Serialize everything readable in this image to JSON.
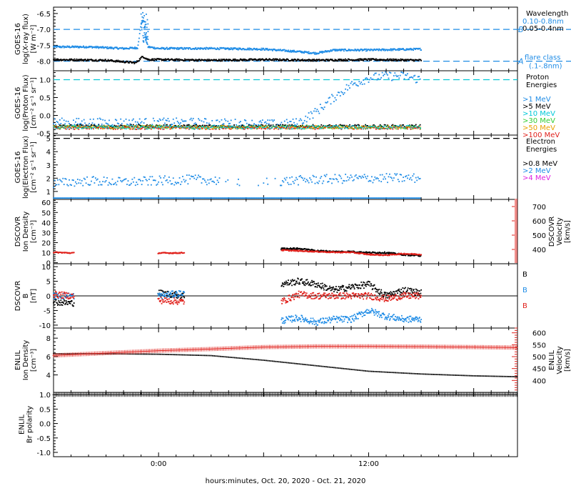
{
  "chart_data": {
    "type": "line",
    "time_axis": {
      "label": "hours:minutes, Oct. 20, 2020 - Oct. 21, 2020",
      "range_hours": [
        -6,
        20.5
      ],
      "ticks": [
        {
          "hour": 0,
          "label": "0:00"
        },
        {
          "hour": 12,
          "label": "12:00"
        }
      ]
    },
    "panels": [
      {
        "id": "xray",
        "ylabel": [
          "GOES-16",
          "log(X-ray flux)",
          "[W m⁻²]"
        ],
        "ylim": [
          -8.3,
          -6.3
        ],
        "yticks": [
          -8.0,
          -7.5,
          -7.0,
          -6.5
        ],
        "ytick_labels": [
          "-8.0",
          "-7.5",
          "-7.0",
          "-6.5"
        ],
        "legend_title": [
          "Wavelength"
        ],
        "legend": [
          {
            "label": "0.10-0.8nm",
            "color": "#1f8ce6"
          },
          {
            "label": "0.05-0.4nm",
            "color": "#000000"
          }
        ],
        "reference_lines": [
          {
            "y": -7.0,
            "label": "B",
            "color": "#1f8ce6"
          },
          {
            "y": -8.0,
            "label": "A",
            "color": "#1f8ce6"
          }
        ],
        "annotation": [
          "flare class",
          "(.1-.8nm)"
        ],
        "series": [
          {
            "name": "0.10-0.8nm",
            "color": "#1f8ce6",
            "points": [
              [
                -6,
                -7.55
              ],
              [
                -4,
                -7.55
              ],
              [
                -2,
                -7.6
              ],
              [
                -1.2,
                -7.58
              ],
              [
                -0.9,
                -6.5
              ],
              [
                -0.8,
                -7.2
              ],
              [
                -0.6,
                -7.55
              ],
              [
                0,
                -7.6
              ],
              [
                3,
                -7.6
              ],
              [
                6,
                -7.62
              ],
              [
                8,
                -7.7
              ],
              [
                9,
                -7.75
              ],
              [
                10,
                -7.65
              ],
              [
                12,
                -7.65
              ],
              [
                15,
                -7.62
              ]
            ]
          },
          {
            "name": "0.05-0.4nm",
            "color": "#000000",
            "points": [
              [
                -6,
                -7.95
              ],
              [
                -3,
                -7.97
              ],
              [
                -1.3,
                -8.05
              ],
              [
                -0.9,
                -7.85
              ],
              [
                -0.6,
                -7.95
              ],
              [
                0,
                -7.95
              ],
              [
                3,
                -7.97
              ],
              [
                6,
                -7.95
              ],
              [
                9,
                -7.97
              ],
              [
                12,
                -7.95
              ],
              [
                15,
                -7.97
              ]
            ]
          }
        ]
      },
      {
        "id": "proton",
        "ylabel": [
          "GOES-16",
          "log(Proton Flux)",
          "[cm⁻² s⁻¹ sr⁻¹]"
        ],
        "ylim": [
          -0.55,
          1.25
        ],
        "yticks": [
          -0.5,
          0.0,
          0.5,
          1.0
        ],
        "ytick_labels": [
          "-0.5",
          "0.0",
          "0.5",
          "1.0"
        ],
        "legend_title": [
          "Proton",
          "Energies"
        ],
        "legend": [
          {
            "label": ">1 MeV",
            "color": "#1f8ce6"
          },
          {
            "label": ">5 MeV",
            "color": "#000000"
          },
          {
            "label": ">10 MeV",
            "color": "#00c8d8"
          },
          {
            "label": ">30 MeV",
            "color": "#33cc33"
          },
          {
            "label": ">50 MeV",
            "color": "#e8a000"
          },
          {
            "label": ">100 MeV",
            "color": "#e0201b"
          }
        ],
        "reference_lines": [
          {
            "y": 1.0,
            "color": "#00c8d8"
          }
        ],
        "series": [
          {
            "name": ">1 MeV",
            "color": "#1f8ce6",
            "points": [
              [
                -6,
                -0.2
              ],
              [
                2,
                -0.2
              ],
              [
                7,
                -0.25
              ],
              [
                8,
                -0.2
              ],
              [
                9,
                0.1
              ],
              [
                10,
                0.5
              ],
              [
                11,
                0.85
              ],
              [
                12,
                1.05
              ],
              [
                13,
                1.1
              ],
              [
                14,
                1.1
              ],
              [
                15,
                1.0
              ]
            ]
          },
          {
            "name": ">5 MeV",
            "color": "#000000",
            "points": [
              [
                -6,
                -0.3
              ],
              [
                15,
                -0.3
              ]
            ]
          },
          {
            "name": ">100 MeV",
            "color": "#e0201b",
            "points": [
              [
                -6,
                -0.35
              ],
              [
                15,
                -0.35
              ]
            ]
          }
        ]
      },
      {
        "id": "electron",
        "ylabel": [
          "GOES-16",
          "log(Electron Flux)",
          "[cm⁻² s⁻¹ sr⁻¹]"
        ],
        "ylim": [
          0.4,
          5.25
        ],
        "yticks": [
          1,
          2,
          3,
          4,
          5
        ],
        "ytick_labels": [
          "1",
          "2",
          "3",
          "4",
          "5"
        ],
        "legend_title": [
          "Electron",
          "Energies"
        ],
        "legend": [
          {
            "label": ">0.8 MeV",
            "color": "#000000"
          },
          {
            "label": ">2 MeV",
            "color": "#1f8ce6"
          },
          {
            "label": ">4 MeV",
            "color": "#e020e0"
          }
        ],
        "reference_lines": [
          {
            "y": 5.0,
            "color": "#000000"
          }
        ],
        "series": [
          {
            "name": ">2 MeV",
            "color": "#1f8ce6",
            "points": [
              [
                -6,
                1.6
              ],
              [
                -4,
                1.8
              ],
              [
                -2,
                1.7
              ],
              [
                0,
                1.8
              ],
              [
                2,
                1.9
              ],
              [
                4,
                1.8
              ],
              [
                6,
                1.7
              ],
              [
                9,
                1.9
              ],
              [
                12,
                2.0
              ],
              [
                15,
                2.0
              ]
            ]
          },
          {
            "name": ">0.8 MeV",
            "color": "#1f8ce6",
            "points": [
              [
                -6,
                0.5
              ],
              [
                15,
                0.5
              ]
            ]
          }
        ]
      },
      {
        "id": "density",
        "ylabel": [
          "DSCOVR",
          "Ion Density",
          "[cm⁻³]"
        ],
        "ylim": [
          -1,
          63
        ],
        "yticks": [
          0,
          10,
          20,
          30,
          40,
          50,
          60
        ],
        "ytick_labels": [
          "0",
          "10",
          "20",
          "30",
          "40",
          "50",
          "60"
        ],
        "right_ylabel": [
          "DSCOVR",
          "Velocity",
          "[km/s]"
        ],
        "right_ylim": [
          300,
          750
        ],
        "right_yticks": [
          400,
          500,
          600,
          700
        ],
        "right_ytick_labels": [
          "400",
          "500",
          "600",
          "700"
        ],
        "series": [
          {
            "name": "density",
            "color": "#000000",
            "axis": "left",
            "points": [
              [
                7,
                14
              ],
              [
                8,
                14
              ],
              [
                9,
                12
              ],
              [
                10,
                11
              ],
              [
                11,
                11
              ],
              [
                12,
                10
              ],
              [
                13,
                10
              ],
              [
                14,
                8
              ],
              [
                15,
                7
              ]
            ]
          },
          {
            "name": "velocity",
            "color": "#e0201b",
            "axis": "right",
            "points": [
              [
                -6,
                380
              ],
              [
                -5,
                375
              ],
              [
                0,
                375
              ],
              [
                1,
                375
              ],
              [
                7,
                395
              ],
              [
                8,
                390
              ],
              [
                9,
                385
              ],
              [
                10,
                380
              ],
              [
                11,
                380
              ],
              [
                12,
                365
              ],
              [
                13,
                360
              ],
              [
                14,
                370
              ],
              [
                15,
                365
              ]
            ]
          }
        ]
      },
      {
        "id": "bfield",
        "ylabel": [
          "DSCOVR",
          "B",
          "[nT]"
        ],
        "ylim": [
          -11,
          11
        ],
        "yticks": [
          -10,
          -5,
          0,
          5,
          10
        ],
        "ytick_labels": [
          "-10",
          "-5",
          "0",
          "5",
          "10"
        ],
        "zero_line": true,
        "legend": [
          {
            "label": "Bx",
            "color": "#000000"
          },
          {
            "label": "By",
            "color": "#1f8ce6"
          },
          {
            "label": "Bz",
            "color": "#e0201b"
          }
        ],
        "series": [
          {
            "name": "Bx",
            "color": "#000000",
            "points": [
              [
                -6,
                -2
              ],
              [
                -5,
                -2.5
              ],
              [
                0,
                1
              ],
              [
                1.5,
                0
              ],
              [
                7,
                4
              ],
              [
                8,
                5
              ],
              [
                9,
                4
              ],
              [
                10,
                2
              ],
              [
                11,
                3
              ],
              [
                12,
                4
              ],
              [
                13,
                0
              ],
              [
                14,
                2
              ],
              [
                15,
                1
              ]
            ]
          },
          {
            "name": "By",
            "color": "#1f8ce6",
            "points": [
              [
                -6,
                0
              ],
              [
                -5,
                0
              ],
              [
                0,
                0
              ],
              [
                1.5,
                1
              ],
              [
                7,
                -8.5
              ],
              [
                8,
                -7.5
              ],
              [
                9,
                -9
              ],
              [
                10,
                -8
              ],
              [
                11,
                -8
              ],
              [
                12,
                -5
              ],
              [
                13,
                -7
              ],
              [
                14,
                -8
              ],
              [
                15,
                -8
              ]
            ]
          },
          {
            "name": "Bz",
            "color": "#e0201b",
            "points": [
              [
                -6,
                0.5
              ],
              [
                -5,
                0
              ],
              [
                0,
                -1.5
              ],
              [
                1.5,
                -2
              ],
              [
                7,
                -2
              ],
              [
                8,
                0.5
              ],
              [
                9,
                0
              ],
              [
                10,
                0
              ],
              [
                11,
                0
              ],
              [
                12,
                0
              ],
              [
                13,
                -1
              ],
              [
                14,
                0
              ],
              [
                15,
                0
              ]
            ]
          }
        ]
      },
      {
        "id": "enlil_density",
        "ylabel": [
          "ENLIL",
          "Ion Density",
          "[cm⁻³]"
        ],
        "ylim": [
          2.1,
          9.1
        ],
        "yticks": [
          4,
          6,
          8
        ],
        "ytick_labels": [
          "4",
          "6",
          "8"
        ],
        "right_ylabel": [
          "ENLIL",
          "Velocity",
          "[km/s]"
        ],
        "right_ylim": [
          350,
          620
        ],
        "right_yticks": [
          400,
          450,
          500,
          550,
          600
        ],
        "right_ytick_labels": [
          "400",
          "450",
          "500",
          "550",
          "600"
        ],
        "series": [
          {
            "name": "density",
            "color": "#000000",
            "axis": "left",
            "points": [
              [
                -6,
                6.3
              ],
              [
                -3,
                6.3
              ],
              [
                0,
                6.25
              ],
              [
                3,
                6.1
              ],
              [
                6,
                5.6
              ],
              [
                9,
                5.0
              ],
              [
                12,
                4.4
              ],
              [
                15,
                4.1
              ],
              [
                18,
                3.9
              ],
              [
                20.5,
                3.8
              ]
            ]
          },
          {
            "name": "velocity",
            "color": "#e0201b",
            "axis": "right",
            "points": [
              [
                -6,
                505
              ],
              [
                -3,
                515
              ],
              [
                0,
                525
              ],
              [
                3,
                532
              ],
              [
                6,
                540
              ],
              [
                9,
                543
              ],
              [
                12,
                543
              ],
              [
                15,
                542
              ],
              [
                18,
                540
              ],
              [
                20.5,
                538
              ]
            ]
          }
        ]
      },
      {
        "id": "enlil_polarity",
        "ylabel": [
          "ENLIL",
          "Br polarity"
        ],
        "ylim": [
          -1.15,
          1.08
        ],
        "yticks": [
          -1.0,
          -0.5,
          0.0,
          0.5,
          1.0
        ],
        "ytick_labels": [
          "-1.0",
          "-0.5",
          "0.0",
          "0.5",
          "1.0"
        ],
        "series": [
          {
            "name": "polarity",
            "color": "#000000",
            "points": [
              [
                -6,
                1.0
              ],
              [
                20.5,
                1.0
              ]
            ]
          }
        ]
      }
    ]
  }
}
